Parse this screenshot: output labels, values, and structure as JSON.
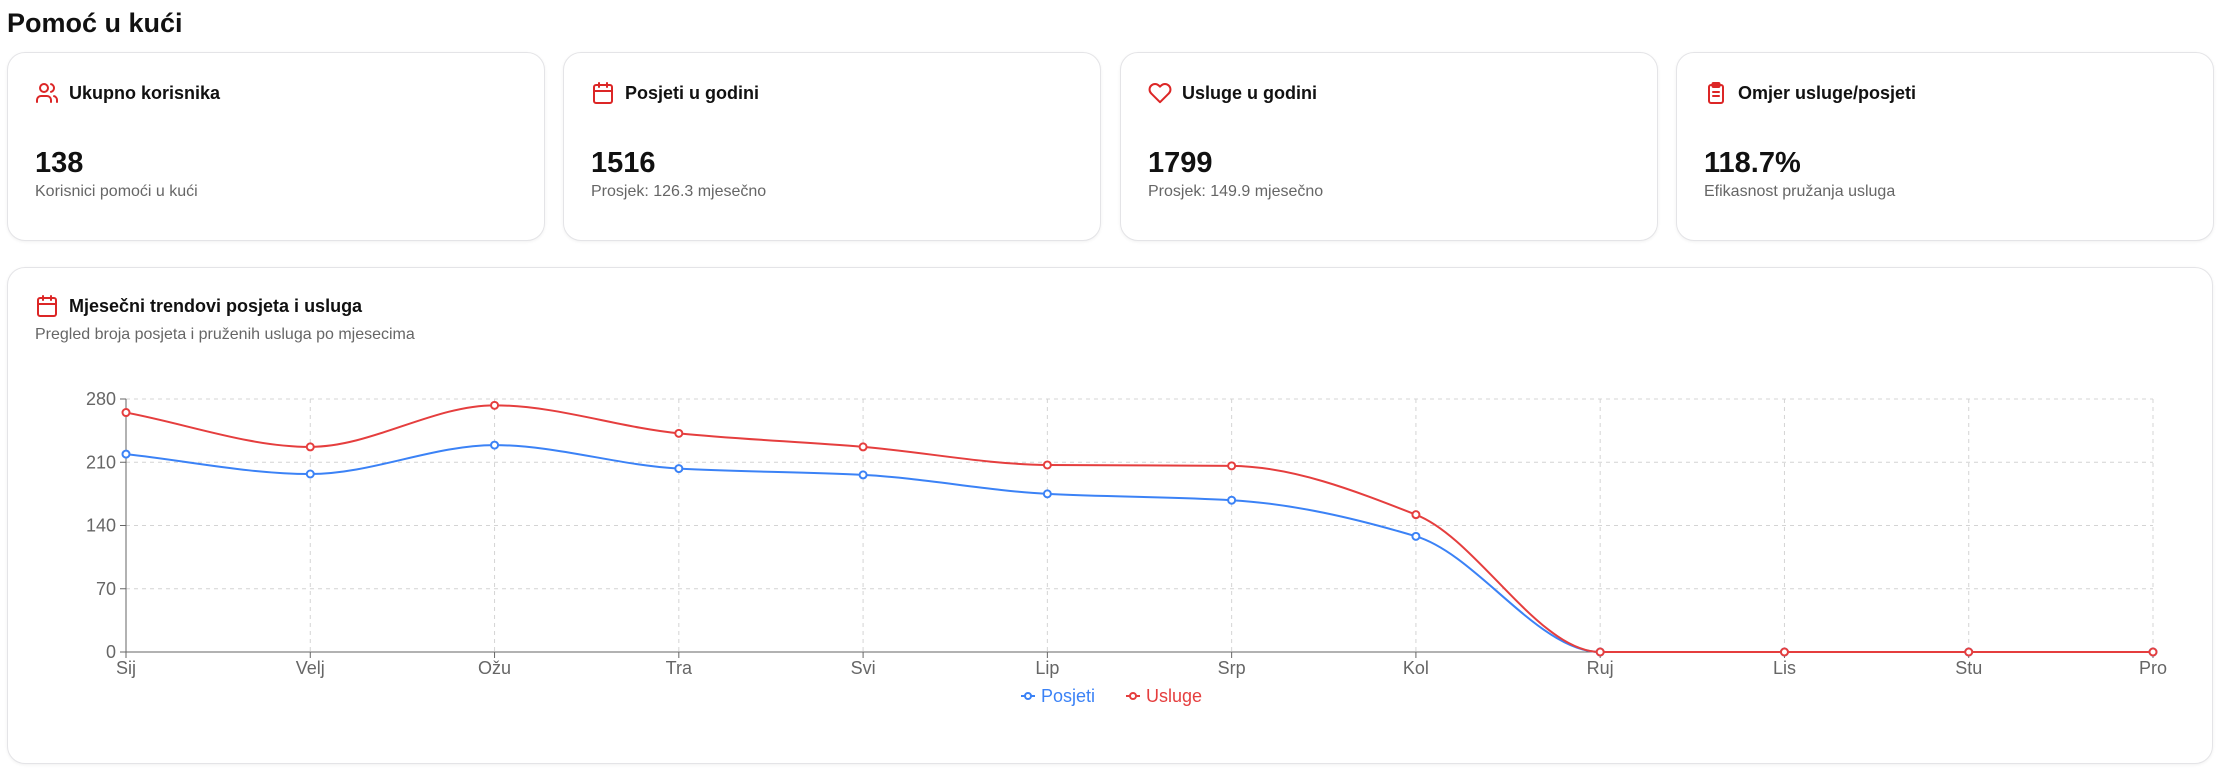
{
  "page": {
    "title": "Pomoć u kući"
  },
  "stats": [
    {
      "icon": "users-icon",
      "label": "Ukupno korisnika",
      "value": "138",
      "sub": "Korisnici pomoći u kući"
    },
    {
      "icon": "calendar-icon",
      "label": "Posjeti u godini",
      "value": "1516",
      "sub": "Prosjek: 126.3 mjesečno"
    },
    {
      "icon": "heart-icon",
      "label": "Usluge u godini",
      "value": "1799",
      "sub": "Prosjek: 149.9 mjesečno"
    },
    {
      "icon": "clipboard-icon",
      "label": "Omjer usluge/posjeti",
      "value": "118.7%",
      "sub": "Efikasnost pružanja usluga"
    }
  ],
  "colors": {
    "accent": "#dc2626",
    "posjeti": "#3b82f6",
    "usluge": "#e53e3e"
  },
  "chart": {
    "title": "Mjesečni trendovi posjeta i usluga",
    "description": "Pregled broja posjeta i pruženih usluga po mjesecima"
  },
  "chart_data": {
    "type": "line",
    "categories": [
      "Sij",
      "Velj",
      "Ožu",
      "Tra",
      "Svi",
      "Lip",
      "Srp",
      "Kol",
      "Ruj",
      "Lis",
      "Stu",
      "Pro"
    ],
    "series": [
      {
        "name": "Posjeti",
        "color": "#3b82f6",
        "values": [
          219,
          197,
          229,
          203,
          196,
          175,
          168,
          128,
          0,
          0,
          0,
          0
        ]
      },
      {
        "name": "Usluge",
        "color": "#e53e3e",
        "values": [
          265,
          227,
          273,
          242,
          227,
          207,
          206,
          152,
          0,
          0,
          0,
          0
        ]
      }
    ],
    "yticks": [
      "0",
      "70",
      "140",
      "210",
      "280"
    ],
    "ylim": [
      0,
      280
    ],
    "grid": true,
    "legend": "bottom-center"
  }
}
